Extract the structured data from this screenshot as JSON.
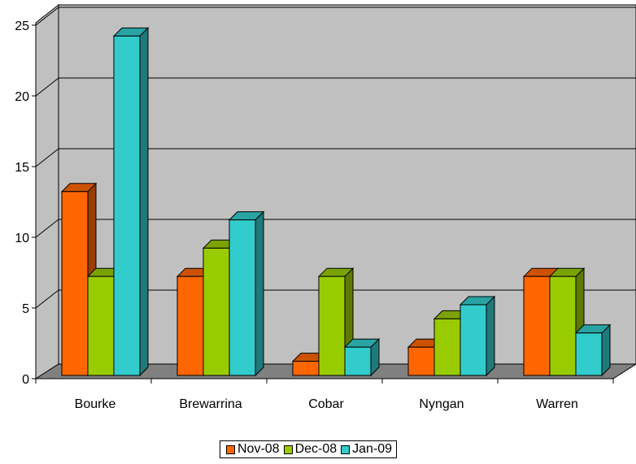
{
  "chart_data": {
    "type": "bar",
    "style": "3d-clustered-column",
    "title": "",
    "xlabel": "",
    "ylabel": "",
    "categories": [
      "Bourke",
      "Brewarrina",
      "Cobar",
      "Nyngan",
      "Warren"
    ],
    "series": [
      {
        "name": "Nov-08",
        "values": [
          13,
          7,
          1,
          2,
          7
        ],
        "color": "#FF6600",
        "side_color": "#993D00",
        "top_color": "#CC5200"
      },
      {
        "name": "Dec-08",
        "values": [
          7,
          9,
          7,
          4,
          7
        ],
        "color": "#99CC00",
        "side_color": "#5C7A00",
        "top_color": "#7AA300"
      },
      {
        "name": "Jan-09",
        "values": [
          24,
          11,
          2,
          5,
          3
        ],
        "color": "#33CCCC",
        "side_color": "#1F7A7A",
        "top_color": "#29A3A3"
      }
    ],
    "ylim": [
      0,
      25
    ],
    "yticks": [
      "0",
      "5",
      "10",
      "15",
      "20",
      "25"
    ],
    "grid": true,
    "wall_color": "#C0C0C0",
    "floor_color": "#808080",
    "legend_position": "bottom"
  }
}
